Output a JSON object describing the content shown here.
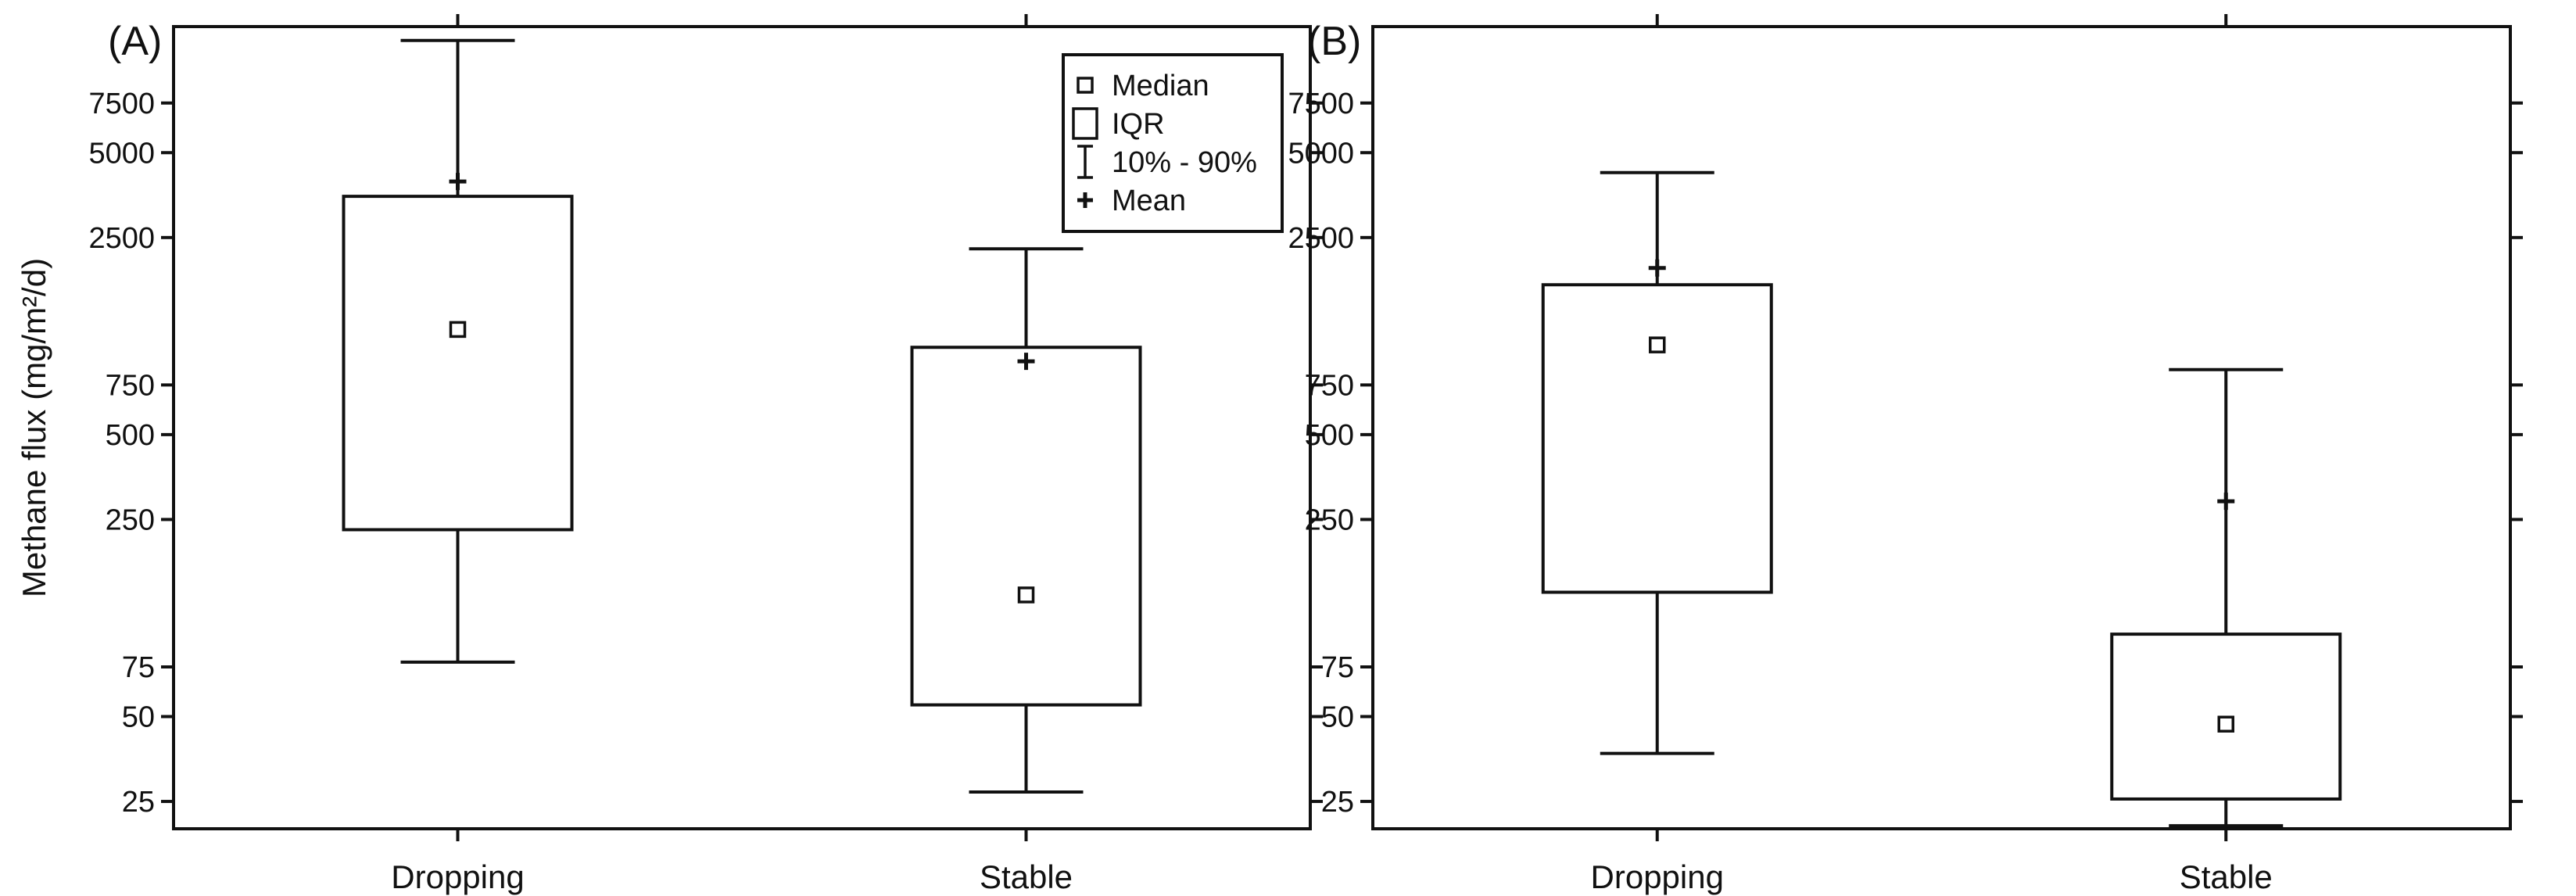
{
  "chart_data": [
    {
      "type": "box",
      "panel_label": "(A)",
      "ylabel": "Methane flux (mg/m²/d)",
      "yscale": "log",
      "ylim": [
        20,
        14000
      ],
      "yticks": [
        25,
        50,
        75,
        250,
        500,
        750,
        2500,
        5000,
        7500
      ],
      "categories": [
        "Dropping",
        "Stable"
      ],
      "boxes": [
        {
          "category": "Dropping",
          "p10": 78,
          "q1": 230,
          "median": 1180,
          "q3": 3500,
          "p90": 12500,
          "mean": 3950
        },
        {
          "category": "Stable",
          "p10": 27,
          "q1": 55,
          "median": 135,
          "q3": 1020,
          "p90": 2280,
          "mean": 910
        }
      ],
      "legend": {
        "position": "top-right",
        "entries": [
          "Median",
          "IQR",
          "10% - 90%",
          "Mean"
        ]
      }
    },
    {
      "type": "box",
      "panel_label": "(B)",
      "ylabel": "",
      "yscale": "log",
      "ylim": [
        20,
        14000
      ],
      "yticks": [
        25,
        50,
        75,
        250,
        500,
        750,
        2500,
        5000,
        7500
      ],
      "categories": [
        "Dropping",
        "Stable"
      ],
      "boxes": [
        {
          "category": "Dropping",
          "p10": 37,
          "q1": 138,
          "median": 1040,
          "q3": 1700,
          "p90": 4250,
          "mean": 1950
        },
        {
          "category": "Stable",
          "p10": 20.5,
          "q1": 25.5,
          "median": 47,
          "q3": 98,
          "p90": 850,
          "mean": 290
        }
      ]
    }
  ]
}
